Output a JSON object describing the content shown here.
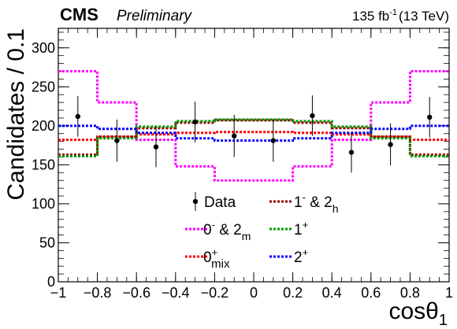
{
  "header": {
    "experiment": "CMS",
    "status": "Preliminary",
    "luminosity": "135 fb",
    "luminosity_sup": "-1",
    "energy": "(13 TeV)"
  },
  "chart_data": {
    "type": "line",
    "step": true,
    "xlabel": "cosθ",
    "xlabel_sub": "1",
    "ylabel": "Candidates / 0.1",
    "xlim": [
      -1,
      1
    ],
    "ylim": [
      0,
      325
    ],
    "x_ticks": [
      "−1",
      "−0.8",
      "−0.6",
      "−0.4",
      "−0.2",
      "0",
      "0.2",
      "0.4",
      "0.6",
      "0.8",
      "1"
    ],
    "y_ticks": [
      "0",
      "50",
      "100",
      "150",
      "200",
      "250",
      "300"
    ],
    "x_tick_values": [
      -1,
      -0.8,
      -0.6,
      -0.4,
      -0.2,
      0,
      0.2,
      0.4,
      0.6,
      0.8,
      1
    ],
    "y_tick_values": [
      0,
      50,
      100,
      150,
      200,
      250,
      300
    ],
    "bin_edges": [
      -1,
      -0.8,
      -0.6,
      -0.4,
      -0.2,
      0,
      0.2,
      0.4,
      0.6,
      0.8,
      1
    ],
    "series": [
      {
        "name": "0",
        "sup": "-",
        "name2": " & 2",
        "sub2": "m",
        "key": "0minus_2m",
        "color": "#ff00ff",
        "values": [
          270,
          230,
          182,
          148,
          130,
          130,
          148,
          182,
          230,
          270
        ]
      },
      {
        "name": "0",
        "sup": "+",
        "sub": "mix",
        "key": "0mix",
        "color": "#ff0000",
        "values": [
          182,
          186,
          189,
          191,
          192,
          192,
          191,
          189,
          186,
          182
        ]
      },
      {
        "name": "1",
        "sup": "-",
        "name2": " & 2",
        "sub2": "h",
        "key": "1minus_2h",
        "color": "#990000",
        "values": [
          163,
          186,
          197,
          204,
          207,
          207,
          204,
          197,
          186,
          163
        ]
      },
      {
        "name": "1",
        "sup": "+",
        "key": "1plus",
        "color": "#009900",
        "values": [
          161,
          184,
          199,
          206,
          208,
          208,
          206,
          199,
          184,
          161
        ]
      },
      {
        "name": "2",
        "sup": "+",
        "key": "2plus",
        "color": "#0000ff",
        "values": [
          200,
          196,
          191,
          184,
          181,
          181,
          184,
          191,
          196,
          200
        ]
      }
    ],
    "data": {
      "name": "Data",
      "x": [
        -0.9,
        -0.7,
        -0.5,
        -0.3,
        -0.1,
        0.1,
        0.3,
        0.5,
        0.7,
        0.9
      ],
      "y": [
        212,
        181,
        173,
        205,
        187,
        181,
        213,
        166,
        176,
        211
      ],
      "err": [
        26,
        27,
        26,
        26,
        27,
        27,
        26,
        26,
        27,
        26
      ]
    }
  }
}
